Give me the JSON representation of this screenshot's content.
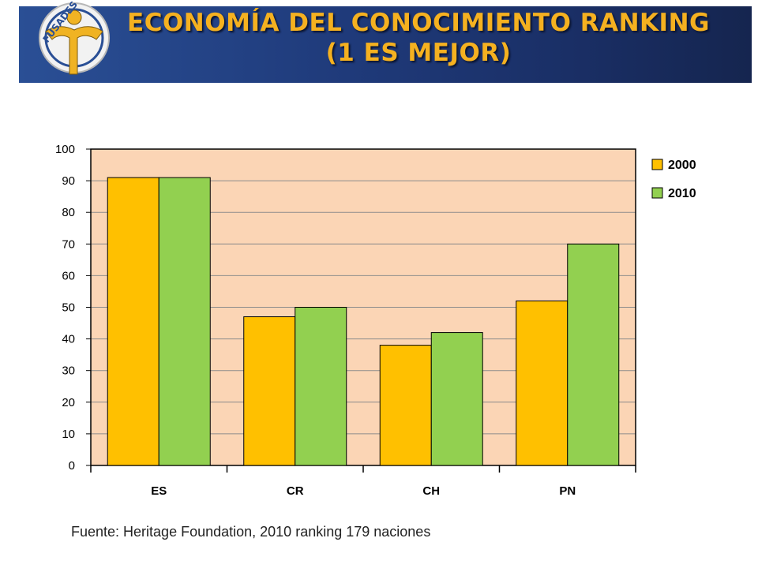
{
  "header": {
    "logo_text": "FUSADES",
    "title_line1": "ECONOMÍA DEL CONOCIMIENTO RANKING",
    "title_line2": "(1 ES MEJOR)"
  },
  "colors": {
    "banner": "#1f3a7a",
    "title": "#f5b120",
    "plot_background": "#fbd5b5",
    "series_2000": "#ffc000",
    "series_2010": "#92d050"
  },
  "chart_data": {
    "type": "bar",
    "categories": [
      "ES",
      "CR",
      "CH",
      "PN"
    ],
    "series": [
      {
        "name": "2000",
        "values": [
          91,
          47,
          38,
          52
        ]
      },
      {
        "name": "2010",
        "values": [
          91,
          50,
          42,
          70
        ]
      }
    ],
    "ylim": [
      0,
      100
    ],
    "yticks": [
      "0",
      "10",
      "20",
      "30",
      "40",
      "50",
      "60",
      "70",
      "80",
      "90",
      "100"
    ],
    "grid": true,
    "legend": "right"
  },
  "source": "Fuente: Heritage Foundation, 2010 ranking 179 naciones"
}
